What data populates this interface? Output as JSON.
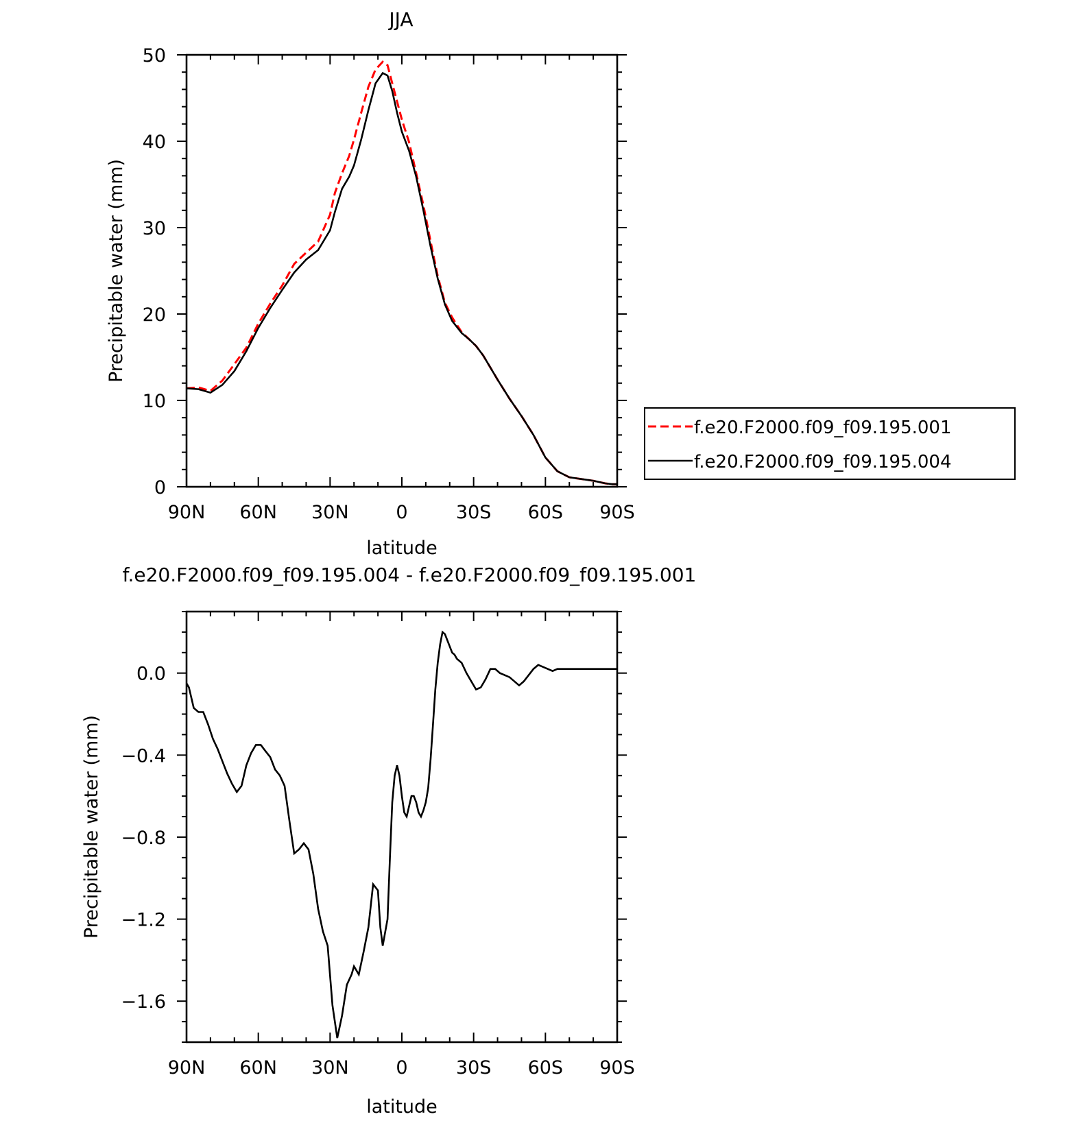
{
  "chart_data": [
    {
      "type": "line",
      "title": "JJA",
      "xlabel": "latitude",
      "ylabel": "Precipitable water (mm)",
      "xlim": [
        -90,
        90
      ],
      "ylim": [
        0,
        50
      ],
      "x_direction": "north-to-south",
      "xticks": [
        {
          "value": -90,
          "label": "90N"
        },
        {
          "value": -60,
          "label": "60N"
        },
        {
          "value": -30,
          "label": "30N"
        },
        {
          "value": 0,
          "label": "0"
        },
        {
          "value": 30,
          "label": "30S"
        },
        {
          "value": 60,
          "label": "60S"
        },
        {
          "value": 90,
          "label": "90S"
        }
      ],
      "yticks": [
        {
          "value": 0,
          "label": "0"
        },
        {
          "value": 10,
          "label": "10"
        },
        {
          "value": 20,
          "label": "20"
        },
        {
          "value": 30,
          "label": "30"
        },
        {
          "value": 40,
          "label": "40"
        },
        {
          "value": 50,
          "label": "50"
        }
      ],
      "legend": "outside-right",
      "series": [
        {
          "name": "f.e20.F2000.f09_f09.195.001",
          "color": "#ff0000",
          "style": "dashed",
          "x": [
            -90,
            -85,
            -80,
            -75,
            -70,
            -65,
            -60,
            -55,
            -50,
            -45,
            -40,
            -35,
            -30,
            -28,
            -25,
            -22,
            -20,
            -17,
            -14,
            -11,
            -8,
            -6,
            -4,
            -2,
            0,
            3,
            6,
            9,
            12,
            15,
            18,
            21,
            25,
            28,
            31,
            34,
            37,
            40,
            45,
            50,
            55,
            60,
            65,
            70,
            75,
            80,
            85,
            88,
            90
          ],
          "values": [
            11.4,
            11.5,
            11.1,
            12.3,
            14.2,
            16.1,
            18.9,
            21.2,
            23.3,
            25.8,
            27.1,
            28.4,
            31.5,
            34.0,
            36.3,
            38.3,
            40.2,
            43.3,
            46.3,
            48.3,
            49.2,
            48.8,
            46.7,
            44.6,
            42.5,
            39.9,
            36.3,
            32.6,
            28.4,
            24.4,
            21.3,
            19.6,
            17.9,
            17.1,
            16.3,
            15.2,
            13.8,
            12.4,
            10.2,
            8.2,
            6.0,
            3.4,
            1.8,
            1.1,
            0.9,
            0.7,
            0.4,
            0.3,
            0.3
          ]
        },
        {
          "name": "f.e20.F2000.f09_f09.195.004",
          "color": "#000000",
          "style": "solid",
          "x": [
            -90,
            -85,
            -80,
            -75,
            -70,
            -65,
            -60,
            -55,
            -50,
            -45,
            -40,
            -35,
            -30,
            -28,
            -25,
            -22,
            -20,
            -17,
            -14,
            -11,
            -8,
            -6,
            -4,
            -2,
            0,
            3,
            6,
            9,
            12,
            15,
            18,
            21,
            25,
            28,
            31,
            34,
            37,
            40,
            45,
            50,
            55,
            60,
            65,
            70,
            75,
            80,
            85,
            88,
            90
          ],
          "values": [
            11.4,
            11.3,
            10.9,
            11.8,
            13.4,
            15.7,
            18.4,
            20.7,
            22.8,
            24.8,
            26.3,
            27.4,
            29.7,
            31.8,
            34.5,
            35.9,
            37.2,
            40.2,
            43.6,
            46.7,
            47.9,
            47.6,
            45.8,
            43.3,
            41.1,
            38.9,
            35.9,
            32.0,
            27.8,
            24.1,
            21.1,
            19.2,
            17.8,
            17.1,
            16.3,
            15.2,
            13.8,
            12.4,
            10.2,
            8.2,
            6.0,
            3.4,
            1.8,
            1.1,
            0.9,
            0.7,
            0.4,
            0.3,
            0.3
          ]
        }
      ]
    },
    {
      "type": "line",
      "title": "f.e20.F2000.f09_f09.195.004 - f.e20.F2000.f09_f09.195.001",
      "xlabel": "latitude",
      "ylabel": "Precipitable water (mm)",
      "xlim": [
        -90,
        90
      ],
      "ylim": [
        -1.8,
        0.3
      ],
      "x_direction": "north-to-south",
      "xticks": [
        {
          "value": -90,
          "label": "90N"
        },
        {
          "value": -60,
          "label": "60N"
        },
        {
          "value": -30,
          "label": "30N"
        },
        {
          "value": 0,
          "label": "0"
        },
        {
          "value": 30,
          "label": "30S"
        },
        {
          "value": 60,
          "label": "60S"
        },
        {
          "value": 90,
          "label": "90S"
        }
      ],
      "yticks": [
        {
          "value": 0.0,
          "label": "0.0"
        },
        {
          "value": -0.4,
          "label": "−0.4"
        },
        {
          "value": -0.8,
          "label": "−0.8"
        },
        {
          "value": -1.2,
          "label": "−1.2"
        },
        {
          "value": -1.6,
          "label": "−1.6"
        }
      ],
      "series": [
        {
          "name": "",
          "color": "#000000",
          "style": "solid",
          "x": [
            -90,
            -89,
            -88,
            -87,
            -85,
            -83,
            -81,
            -79,
            -77,
            -75,
            -73,
            -71,
            -69,
            -67,
            -65,
            -63,
            -61,
            -59,
            -57,
            -55,
            -53,
            -51,
            -49,
            -47,
            -45,
            -43,
            -41,
            -39,
            -37,
            -35,
            -33,
            -31,
            -29,
            -27,
            -25,
            -23,
            -21,
            -20,
            -18,
            -16,
            -14,
            -12,
            -10,
            -9,
            -8,
            -6,
            -5,
            -4,
            -3,
            -2,
            -1,
            0,
            1,
            2,
            3,
            4,
            5,
            6,
            7,
            8,
            9,
            10,
            11,
            12,
            13,
            14,
            15,
            16,
            17,
            18,
            19,
            20,
            21,
            22,
            23,
            25,
            27,
            29,
            31,
            33,
            35,
            37,
            39,
            41,
            43,
            45,
            47,
            49,
            51,
            53,
            55,
            57,
            59,
            61,
            63,
            65,
            67,
            69,
            71,
            73,
            75,
            77,
            79,
            81,
            83,
            85,
            87,
            89,
            90
          ],
          "values": [
            -0.05,
            -0.07,
            -0.12,
            -0.17,
            -0.19,
            -0.19,
            -0.25,
            -0.32,
            -0.37,
            -0.43,
            -0.49,
            -0.54,
            -0.58,
            -0.55,
            -0.45,
            -0.39,
            -0.35,
            -0.35,
            -0.38,
            -0.41,
            -0.47,
            -0.5,
            -0.55,
            -0.72,
            -0.88,
            -0.86,
            -0.83,
            -0.86,
            -0.98,
            -1.15,
            -1.26,
            -1.33,
            -1.62,
            -1.78,
            -1.67,
            -1.52,
            -1.47,
            -1.43,
            -1.47,
            -1.36,
            -1.24,
            -1.03,
            -1.06,
            -1.24,
            -1.33,
            -1.2,
            -0.9,
            -0.63,
            -0.5,
            -0.45,
            -0.5,
            -0.6,
            -0.68,
            -0.7,
            -0.65,
            -0.6,
            -0.6,
            -0.63,
            -0.68,
            -0.7,
            -0.67,
            -0.63,
            -0.56,
            -0.42,
            -0.25,
            -0.08,
            0.05,
            0.14,
            0.2,
            0.19,
            0.16,
            0.13,
            0.1,
            0.09,
            0.07,
            0.05,
            0.0,
            -0.04,
            -0.08,
            -0.07,
            -0.03,
            0.02,
            0.02,
            0.0,
            -0.01,
            -0.02,
            -0.04,
            -0.06,
            -0.04,
            -0.01,
            0.02,
            0.04,
            0.03,
            0.02,
            0.01,
            0.02,
            0.02,
            0.02,
            0.02,
            0.02,
            0.02,
            0.02,
            0.02,
            0.02,
            0.02,
            0.02,
            0.02,
            0.02,
            0.02
          ]
        }
      ]
    }
  ]
}
